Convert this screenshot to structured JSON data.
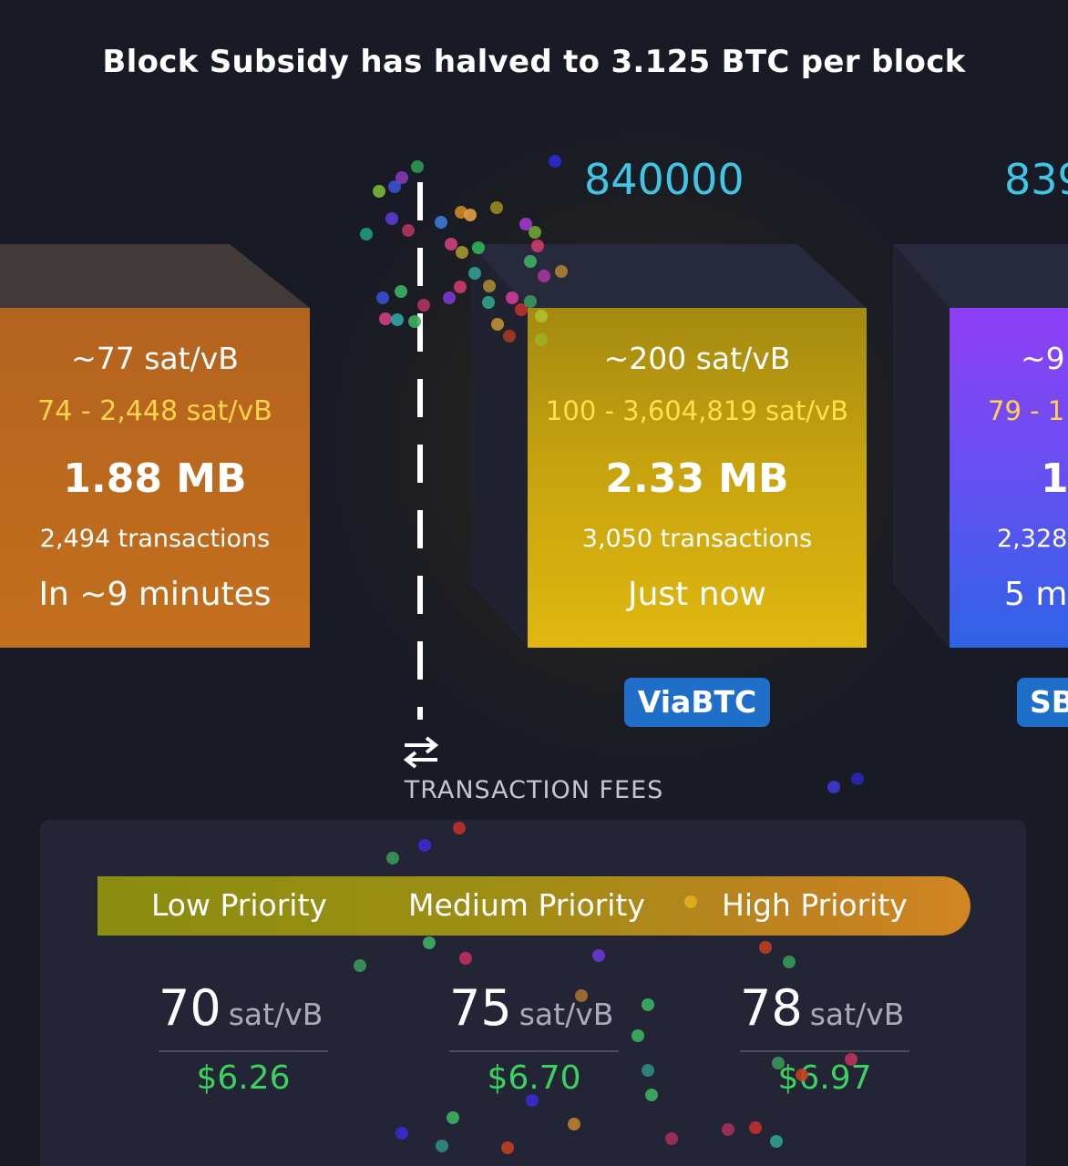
{
  "banner": "Block Subsidy has halved to 3.125 BTC per block",
  "pending_block": {
    "median_fee": "~77 sat/vB",
    "fee_range": "74 - 2,448 sat/vB",
    "size": "1.88 MB",
    "tx_count": "2,494 transactions",
    "eta": "In ~9 minutes"
  },
  "mined_blocks": [
    {
      "height": "840000",
      "median_fee": "~200 sat/vB",
      "fee_range": "100 - 3,604,819 sat/vB",
      "size": "2.33 MB",
      "tx_count": "3,050 transactions",
      "time": "Just now",
      "pool": "ViaBTC"
    },
    {
      "height": "839",
      "median_fee": "~9",
      "fee_range": "79 - 1",
      "size": "1.",
      "tx_count": "2,328",
      "time": "5 mi",
      "pool": "SB"
    }
  ],
  "fees": {
    "title": "TRANSACTION FEES",
    "priorities": [
      {
        "label": "Low Priority",
        "rate": "70",
        "unit": "sat/vB",
        "usd": "$6.26"
      },
      {
        "label": "Medium Priority",
        "rate": "75",
        "unit": "sat/vB",
        "usd": "$6.70"
      },
      {
        "label": "High Priority",
        "rate": "78",
        "unit": "sat/vB",
        "usd": "$6.97"
      }
    ]
  },
  "colors": {
    "accent_height": "#3fc6e4",
    "fee_green": "#39d35d",
    "range_yellow": "#ffe14a",
    "pool_badge": "#1f6ec9"
  },
  "icons": {
    "swap": "swap-arrows-icon"
  }
}
